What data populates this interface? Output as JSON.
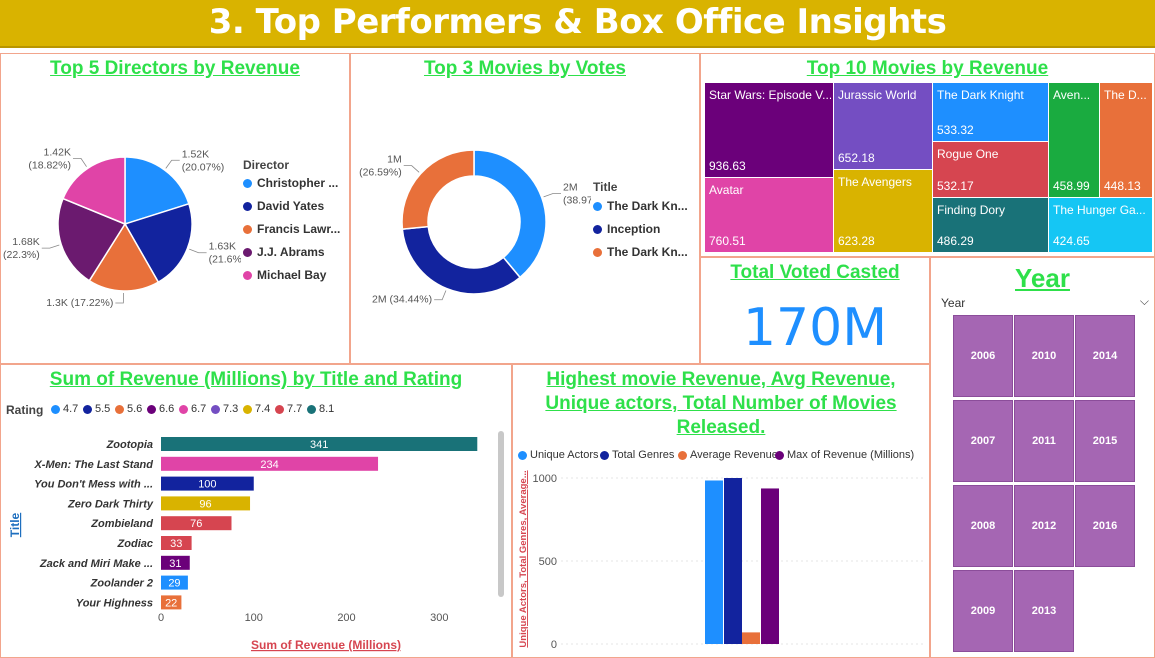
{
  "page": {
    "title": "3. Top Performers & Box Office Insights"
  },
  "colors": {
    "banner": "#d9b300",
    "panel_title": "#2ee04a",
    "border": "#f2a58c",
    "slicer_tile": "#a566b3",
    "kpi": "#1e8fff"
  },
  "directors_pie": {
    "title": "Top 5 Directors by Revenue",
    "legend_title": "Director",
    "chart_data": {
      "type": "pie",
      "categories": [
        "Christopher ...",
        "David Yates",
        "Francis Lawr...",
        "J.J. Abrams",
        "Michael Bay"
      ],
      "values": [
        1.52,
        1.63,
        1.3,
        1.68,
        1.42
      ],
      "colors": [
        "#1e8fff",
        "#12239e",
        "#e8703a",
        "#6b1a6f",
        "#e044a7"
      ],
      "labels": [
        "1.52K\n(20.07%)",
        "1.63K\n(21.6%)",
        "1.3K (17.22%)",
        "1.68K\n(22.3%)",
        "1.42K\n(18.82%)"
      ]
    }
  },
  "votes_donut": {
    "title": "Top 3 Movies by Votes",
    "legend_title": "Title",
    "chart_data": {
      "type": "pie",
      "categories": [
        "The Dark Kn...",
        "Inception",
        "The Dark Kn..."
      ],
      "values": [
        38.97,
        34.44,
        26.59
      ],
      "colors": [
        "#1e8fff",
        "#12239e",
        "#e8703a"
      ],
      "labels": [
        "2M\n(38.97%)",
        "2M (34.44%)",
        "1M\n(26.59%)"
      ]
    }
  },
  "treemap": {
    "title": "Top 10 Movies by Revenue",
    "chart_data": {
      "type": "treemap",
      "items": [
        {
          "name": "Star Wars: Episode V...",
          "value": "936.63",
          "color": "#6b007a"
        },
        {
          "name": "Avatar",
          "value": "760.51",
          "color": "#e044a7"
        },
        {
          "name": "Jurassic World",
          "value": "652.18",
          "color": "#744ec2"
        },
        {
          "name": "The Avengers",
          "value": "623.28",
          "color": "#d9b300"
        },
        {
          "name": "The Dark Knight",
          "value": "533.32",
          "color": "#1e8fff"
        },
        {
          "name": "Rogue One",
          "value": "532.17",
          "color": "#d64550"
        },
        {
          "name": "Finding Dory",
          "value": "486.29",
          "color": "#197278"
        },
        {
          "name": "Aven...",
          "value": "458.99",
          "color": "#1aab40"
        },
        {
          "name": "The D...",
          "value": "448.13",
          "color": "#e8703a"
        },
        {
          "name": "The Hunger Ga...",
          "value": "424.65",
          "color": "#15c6f4"
        }
      ]
    }
  },
  "kpi": {
    "title": "Total Voted Casted",
    "value": "170M"
  },
  "year_slicer": {
    "title": "Year",
    "dropdown_label": "Year",
    "years": [
      "2006",
      "2010",
      "2014",
      "2007",
      "2011",
      "2015",
      "2008",
      "2012",
      "2016",
      "2009",
      "2013"
    ]
  },
  "revenue_bar": {
    "title": "Sum of Revenue (Millions) by Title and Rating",
    "legend_title": "Rating",
    "legend": [
      {
        "name": "4.7",
        "color": "#1e8fff"
      },
      {
        "name": "5.5",
        "color": "#12239e"
      },
      {
        "name": "5.6",
        "color": "#e8703a"
      },
      {
        "name": "6.6",
        "color": "#6b007a"
      },
      {
        "name": "6.7",
        "color": "#e044a7"
      },
      {
        "name": "7.3",
        "color": "#744ec2"
      },
      {
        "name": "7.4",
        "color": "#d9b300"
      },
      {
        "name": "7.7",
        "color": "#d64550"
      },
      {
        "name": "8.1",
        "color": "#197278"
      }
    ],
    "chart_data": {
      "type": "bar",
      "orientation": "horizontal",
      "categories": [
        "Zootopia",
        "X-Men: The Last Stand",
        "You Don't Mess with ...",
        "Zero Dark Thirty",
        "Zombieland",
        "Zodiac",
        "Zack and Miri Make ...",
        "Zoolander 2",
        "Your Highness"
      ],
      "values": [
        341,
        234,
        100,
        96,
        76,
        33,
        31,
        29,
        22
      ],
      "colors": [
        "#197278",
        "#e044a7",
        "#12239e",
        "#d9b300",
        "#d64550",
        "#d64550",
        "#6b007a",
        "#1e8fff",
        "#e8703a"
      ],
      "xlabel": "Sum of Revenue (Millions)",
      "ylabel": "Title",
      "xlim": [
        0,
        345
      ],
      "xticks": [
        "0",
        "100",
        "200",
        "300"
      ],
      "xtick_values": [
        0,
        100,
        200,
        300
      ]
    }
  },
  "stats_column": {
    "title_lines": [
      "Highest movie Revenue, Avg Revenue,",
      "Unique actors, Total Number of Movies",
      "Released."
    ],
    "chart_data": {
      "type": "bar",
      "series": [
        {
          "name": "Unique Actors",
          "values": [
            985
          ],
          "color": "#1e8fff"
        },
        {
          "name": "Total Genres",
          "values": [
            1000
          ],
          "color": "#12239e"
        },
        {
          "name": "Average Revenue",
          "values": [
            70
          ],
          "color": "#e8703a"
        },
        {
          "name": "Max of Revenue (Millions)",
          "values": [
            937
          ],
          "color": "#6b007a"
        }
      ],
      "ylabel": "Unique Actors, Total Genres, Average...",
      "ylim": [
        0,
        1000
      ],
      "yticks": [
        "0",
        "500",
        "1000"
      ],
      "ytick_values": [
        0,
        500,
        1000
      ]
    }
  }
}
